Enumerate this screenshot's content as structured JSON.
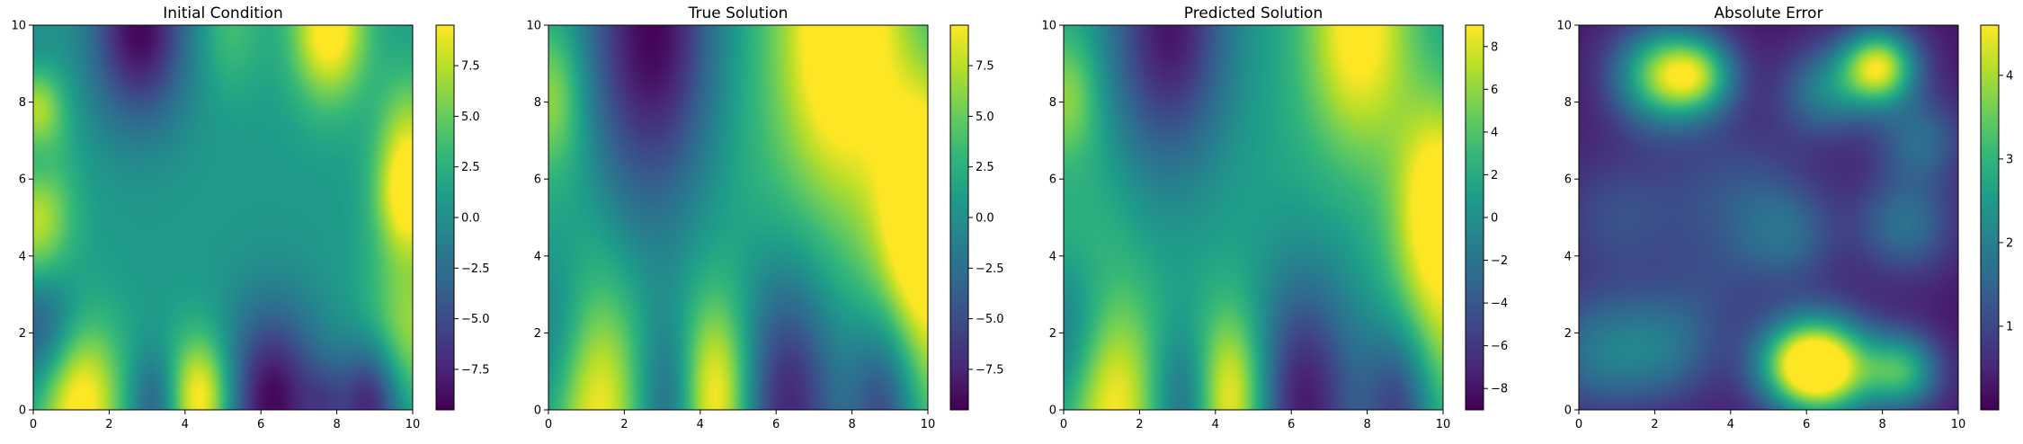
{
  "figure": {
    "colormap": "viridis",
    "colormap_colors": [
      "#440154",
      "#482878",
      "#3e4989",
      "#31688e",
      "#26828e",
      "#1f9e89",
      "#35b779",
      "#6ece58",
      "#b5de2b",
      "#fde725"
    ]
  },
  "chart_data": [
    {
      "type": "heatmap",
      "title": "Initial Condition",
      "xlabel": "",
      "ylabel": "",
      "xlim": [
        0,
        10
      ],
      "ylim": [
        0,
        10
      ],
      "xticks": [
        "0",
        "2",
        "4",
        "6",
        "8",
        "10"
      ],
      "yticks": [
        "0",
        "2",
        "4",
        "6",
        "8",
        "10"
      ],
      "colorbar": {
        "range": [
          -9.5,
          9.5
        ],
        "ticks": [
          "−7.5",
          "−5.0",
          "−2.5",
          "0.0",
          "2.5",
          "5.0",
          "7.5"
        ],
        "tick_values": [
          -7.5,
          -5,
          -2.5,
          0,
          2.5,
          5,
          7.5
        ]
      },
      "field": {
        "interior": 0.8,
        "spread": 0.9,
        "features": [
          {
            "x": 1.2,
            "y": 0.2,
            "v": 10,
            "s": 0.8
          },
          {
            "x": 4.4,
            "y": 0.3,
            "v": 10,
            "s": 0.6
          },
          {
            "x": 3.2,
            "y": 0.2,
            "v": -5,
            "s": 0.5
          },
          {
            "x": 6.3,
            "y": 0.2,
            "v": -10,
            "s": 0.9
          },
          {
            "x": 8.9,
            "y": 0.2,
            "v": -9,
            "s": 0.6
          },
          {
            "x": 7.7,
            "y": 0.2,
            "v": -3,
            "s": 0.4
          },
          {
            "x": 0.2,
            "y": 2.4,
            "v": -8,
            "s": 0.7
          },
          {
            "x": 0.1,
            "y": 4.0,
            "v": 6,
            "s": 0.7
          },
          {
            "x": 0.1,
            "y": 5.5,
            "v": 4,
            "s": 0.6
          },
          {
            "x": 0.1,
            "y": 7.8,
            "v": 8,
            "s": 0.5
          },
          {
            "x": 0.1,
            "y": 6.6,
            "v": -4,
            "s": 0.4
          },
          {
            "x": 0.1,
            "y": 9.3,
            "v": -4,
            "s": 0.5
          },
          {
            "x": 9.9,
            "y": 5.6,
            "v": 10,
            "s": 0.6
          },
          {
            "x": 9.9,
            "y": 2.0,
            "v": 6,
            "s": 0.8
          },
          {
            "x": 9.9,
            "y": 7.5,
            "v": 4,
            "s": 0.6
          },
          {
            "x": 2.8,
            "y": 9.9,
            "v": -10,
            "s": 0.9
          },
          {
            "x": 7.8,
            "y": 9.9,
            "v": 10,
            "s": 0.7
          },
          {
            "x": 5.2,
            "y": 9.9,
            "v": 3,
            "s": 0.6
          },
          {
            "x": 0.2,
            "y": 9.9,
            "v": 2,
            "s": 0.5
          }
        ]
      }
    },
    {
      "type": "heatmap",
      "title": "True Solution",
      "xlabel": "",
      "ylabel": "",
      "xlim": [
        0,
        10
      ],
      "ylim": [
        0,
        10
      ],
      "xticks": [
        "0",
        "2",
        "4",
        "6",
        "8",
        "10"
      ],
      "yticks": [
        "0",
        "2",
        "4",
        "6",
        "8",
        "10"
      ],
      "colorbar": {
        "range": [
          -9.5,
          9.5
        ],
        "ticks": [
          "−7.5",
          "−5.0",
          "−2.5",
          "0.0",
          "2.5",
          "5.0",
          "7.5"
        ],
        "tick_values": [
          -7.5,
          -5,
          -2.5,
          0,
          2.5,
          5,
          7.5
        ]
      },
      "field": {
        "interior": 1.0,
        "spread": 1.6,
        "features": [
          {
            "x": 1.2,
            "y": 0.2,
            "v": 10,
            "s": 0.9
          },
          {
            "x": 4.4,
            "y": 0.3,
            "v": 10,
            "s": 0.7
          },
          {
            "x": 3.2,
            "y": 0.2,
            "v": -5,
            "s": 0.6
          },
          {
            "x": 6.3,
            "y": 0.2,
            "v": -10,
            "s": 1.0
          },
          {
            "x": 8.9,
            "y": 0.2,
            "v": -9,
            "s": 0.7
          },
          {
            "x": 0.2,
            "y": 2.4,
            "v": -8,
            "s": 0.8
          },
          {
            "x": 0.1,
            "y": 4.0,
            "v": 6,
            "s": 0.9
          },
          {
            "x": 0.1,
            "y": 7.8,
            "v": 8,
            "s": 0.6
          },
          {
            "x": 0.1,
            "y": 6.6,
            "v": -4,
            "s": 0.6
          },
          {
            "x": 9.9,
            "y": 5.6,
            "v": 10,
            "s": 0.8
          },
          {
            "x": 9.9,
            "y": 2.0,
            "v": 6,
            "s": 1.0
          },
          {
            "x": 2.8,
            "y": 9.9,
            "v": -10,
            "s": 1.2
          },
          {
            "x": 7.8,
            "y": 9.9,
            "v": 10,
            "s": 1.1
          },
          {
            "x": 6.5,
            "y": 6.5,
            "v": 3,
            "s": 2.5
          },
          {
            "x": 2.5,
            "y": 5.0,
            "v": -1.5,
            "s": 2.5
          }
        ]
      }
    },
    {
      "type": "heatmap",
      "title": "Predicted Solution",
      "xlabel": "",
      "ylabel": "",
      "xlim": [
        0,
        10
      ],
      "ylim": [
        0,
        10
      ],
      "xticks": [
        "0",
        "2",
        "4",
        "6",
        "8",
        "10"
      ],
      "yticks": [
        "0",
        "2",
        "4",
        "6",
        "8",
        "10"
      ],
      "colorbar": {
        "range": [
          -9,
          9
        ],
        "ticks": [
          "−8",
          "−6",
          "−4",
          "−2",
          "0",
          "2",
          "4",
          "6",
          "8"
        ],
        "tick_values": [
          -8,
          -6,
          -4,
          -2,
          0,
          2,
          4,
          6,
          8
        ]
      },
      "field": {
        "interior": 0.5,
        "spread": 1.3,
        "features": [
          {
            "x": 1.2,
            "y": 0.2,
            "v": 9,
            "s": 0.9
          },
          {
            "x": 4.4,
            "y": 0.3,
            "v": 9,
            "s": 0.7
          },
          {
            "x": 3.2,
            "y": 0.2,
            "v": -5,
            "s": 0.6
          },
          {
            "x": 6.3,
            "y": 0.2,
            "v": -9,
            "s": 1.0
          },
          {
            "x": 8.9,
            "y": 0.2,
            "v": -8,
            "s": 0.7
          },
          {
            "x": 0.2,
            "y": 2.4,
            "v": -8,
            "s": 0.8
          },
          {
            "x": 0.1,
            "y": 4.0,
            "v": 6,
            "s": 0.9
          },
          {
            "x": 0.1,
            "y": 7.8,
            "v": 7,
            "s": 0.6
          },
          {
            "x": 0.1,
            "y": 6.6,
            "v": -4,
            "s": 0.6
          },
          {
            "x": 9.9,
            "y": 5.6,
            "v": 9,
            "s": 0.8
          },
          {
            "x": 9.9,
            "y": 2.0,
            "v": 6,
            "s": 1.0
          },
          {
            "x": 2.8,
            "y": 9.9,
            "v": -9,
            "s": 1.1
          },
          {
            "x": 7.8,
            "y": 9.9,
            "v": 9,
            "s": 1.0
          },
          {
            "x": 5.0,
            "y": 5.0,
            "v": 1,
            "s": 3.0
          }
        ]
      }
    },
    {
      "type": "heatmap",
      "title": "Absolute Error",
      "xlabel": "",
      "ylabel": "",
      "xlim": [
        0,
        10
      ],
      "ylim": [
        0,
        10
      ],
      "xticks": [
        "0",
        "2",
        "4",
        "6",
        "8",
        "10"
      ],
      "yticks": [
        "0",
        "2",
        "4",
        "6",
        "8",
        "10"
      ],
      "colorbar": {
        "range": [
          0,
          4.6
        ],
        "ticks": [
          "1",
          "2",
          "3",
          "4"
        ],
        "tick_values": [
          1,
          2,
          3,
          4
        ]
      },
      "field": {
        "interior": 0.3,
        "spread": 0,
        "features": [
          {
            "x": 6.5,
            "y": 1.1,
            "v": 4.4,
            "s": 0.9
          },
          {
            "x": 5.6,
            "y": 1.2,
            "v": 2.0,
            "s": 0.8
          },
          {
            "x": 8.5,
            "y": 1.0,
            "v": 2.6,
            "s": 0.7
          },
          {
            "x": 2.2,
            "y": 8.7,
            "v": 3.2,
            "s": 0.9
          },
          {
            "x": 3.2,
            "y": 8.7,
            "v": 2.2,
            "s": 0.7
          },
          {
            "x": 7.9,
            "y": 8.9,
            "v": 4.0,
            "s": 0.7
          },
          {
            "x": 6.5,
            "y": 8.3,
            "v": 1.6,
            "s": 0.8
          },
          {
            "x": 0.5,
            "y": 1.5,
            "v": 1.4,
            "s": 1.1
          },
          {
            "x": 2.3,
            "y": 1.6,
            "v": 1.2,
            "s": 1.0
          },
          {
            "x": 4.2,
            "y": 5.5,
            "v": 0.9,
            "s": 1.4
          },
          {
            "x": 8.6,
            "y": 4.8,
            "v": 1.4,
            "s": 0.9
          },
          {
            "x": 1.0,
            "y": 5.0,
            "v": 0.8,
            "s": 1.2
          },
          {
            "x": 5.5,
            "y": 4.5,
            "v": 1.0,
            "s": 0.9
          },
          {
            "x": 9.0,
            "y": 7.0,
            "v": 1.3,
            "s": 0.8
          },
          {
            "x": 3.5,
            "y": 3.0,
            "v": 0.4,
            "s": 1.0
          }
        ]
      }
    }
  ]
}
